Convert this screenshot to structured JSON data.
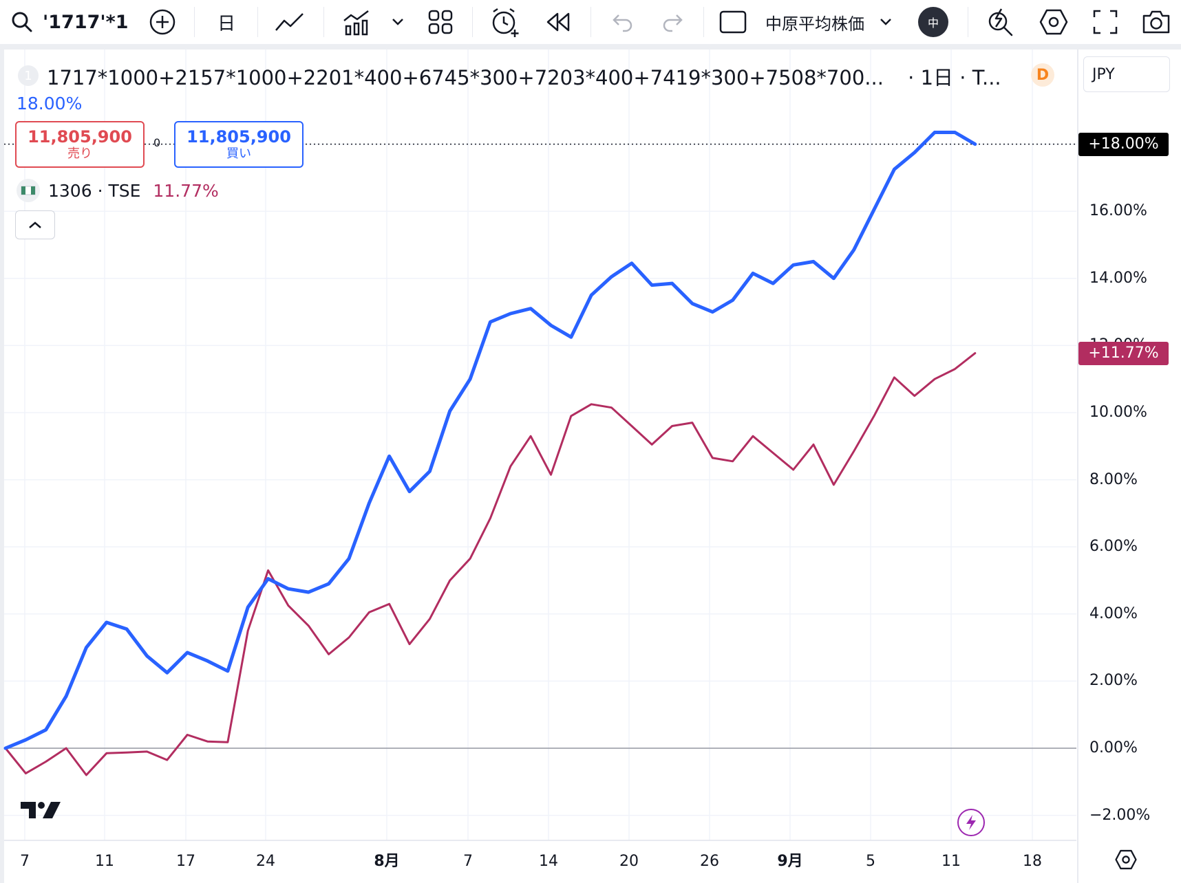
{
  "toolbar": {
    "symbol": "'1717'*1",
    "interval": "日",
    "index_selector": "中原平均株価",
    "avatar_letter": "中"
  },
  "legend": {
    "badge": "1",
    "title": "1717*1000+2157*1000+2201*400+6745*300+7203*400+7419*300+7508*700...",
    "interval_suffix": "· 1日 · T...",
    "source_badge": "D",
    "percent": "18.00%",
    "sell_price": "11,805,900",
    "sell_label": "売り",
    "spread": "0",
    "buy_price": "11,805,900",
    "buy_label": "買い",
    "compare_symbol": "1306 · TSE",
    "compare_value": "11.77%"
  },
  "currency": "JPY",
  "price_tags": {
    "main": "+18.00%",
    "compare": "+11.77%"
  },
  "colors": {
    "main_series": "#2962ff",
    "compare_series": "#b22d60",
    "grid": "#f0f3fa",
    "zero_line": "#9598a1"
  },
  "chart_data": {
    "type": "line",
    "y_unit": "%",
    "ylim": [
      -2.5,
      20
    ],
    "y_ticks": [
      "18.00%",
      "16.00%",
      "14.00%",
      "12.00%",
      "10.00%",
      "8.00%",
      "6.00%",
      "4.00%",
      "2.00%",
      "0.00%",
      "−2.00%"
    ],
    "x_tick_labels": [
      "7",
      "11",
      "17",
      "24",
      "8月",
      "7",
      "14",
      "20",
      "26",
      "9月",
      "5",
      "11",
      "18"
    ],
    "x_tick_bold": [
      false,
      false,
      false,
      false,
      true,
      false,
      false,
      false,
      false,
      true,
      false,
      false,
      false
    ],
    "grid": true,
    "series": [
      {
        "name": "1717*1000+2157*1000+2201*400+6745*300+7203*400+7419*300+7508*700...",
        "values": [
          0.0,
          0.25,
          0.55,
          1.55,
          3.0,
          3.75,
          3.55,
          2.75,
          2.25,
          2.85,
          2.6,
          2.3,
          4.2,
          5.05,
          4.75,
          4.65,
          4.9,
          5.65,
          7.3,
          8.7,
          7.65,
          8.25,
          10.05,
          11.0,
          12.7,
          12.95,
          13.1,
          12.6,
          12.25,
          13.5,
          14.05,
          14.45,
          13.8,
          13.85,
          13.25,
          13.0,
          13.35,
          14.15,
          13.85,
          14.4,
          14.5,
          14.0,
          14.85,
          16.05,
          17.25,
          17.75,
          18.35,
          18.35,
          18.0
        ],
        "last_value": 18.0
      },
      {
        "name": "1306 · TSE",
        "values": [
          0.0,
          -0.75,
          -0.4,
          0.0,
          -0.8,
          -0.15,
          -0.13,
          -0.1,
          -0.35,
          0.4,
          0.2,
          0.18,
          3.5,
          5.3,
          4.25,
          3.65,
          2.8,
          3.3,
          4.05,
          4.3,
          3.1,
          3.85,
          5.0,
          5.65,
          6.85,
          8.4,
          9.3,
          8.15,
          9.9,
          10.25,
          10.15,
          9.6,
          9.05,
          9.6,
          9.7,
          8.65,
          8.55,
          9.3,
          8.8,
          8.3,
          9.05,
          7.85,
          8.85,
          9.9,
          11.05,
          10.5,
          11.0,
          11.3,
          11.77
        ],
        "last_value": 11.77
      }
    ]
  }
}
